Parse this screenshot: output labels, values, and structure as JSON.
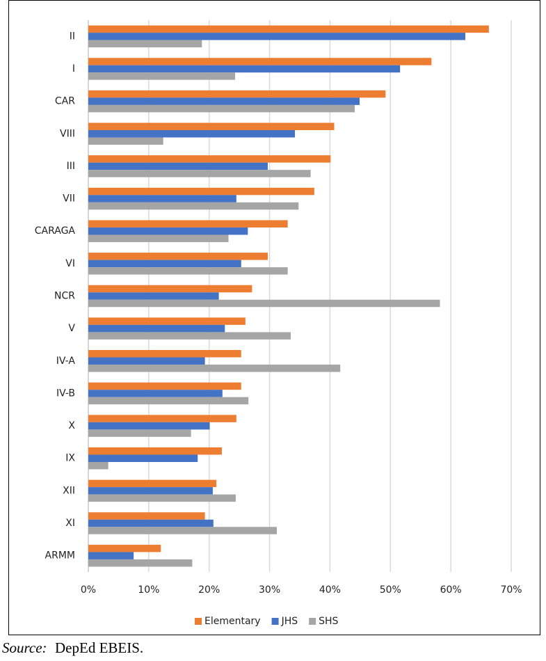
{
  "chart_data": {
    "type": "bar",
    "orientation": "horizontal",
    "categories": [
      "II",
      "I",
      "CAR",
      "VIII",
      "III",
      "VII",
      "CARAGA",
      "VI",
      "NCR",
      "V",
      "IV-A",
      "IV-B",
      "X",
      "IX",
      "XII",
      "XI",
      "ARMM"
    ],
    "series": [
      {
        "name": "Elementary",
        "color": "#ed7d31",
        "values": [
          66.3,
          56.8,
          49.2,
          40.7,
          40.1,
          37.4,
          33.0,
          29.7,
          27.1,
          26.0,
          25.3,
          25.3,
          24.5,
          22.1,
          21.2,
          19.3,
          12.0
        ]
      },
      {
        "name": "JHS",
        "color": "#4472c4",
        "values": [
          62.4,
          51.6,
          44.9,
          34.2,
          29.7,
          24.5,
          26.4,
          25.3,
          21.6,
          22.6,
          19.3,
          22.2,
          20.1,
          18.1,
          20.6,
          20.7,
          7.5
        ]
      },
      {
        "name": "SHS",
        "color": "#a5a5a5",
        "values": [
          18.8,
          24.3,
          44.1,
          12.4,
          36.8,
          34.8,
          23.2,
          33.0,
          58.2,
          33.5,
          41.7,
          26.5,
          17.0,
          3.3,
          24.4,
          31.2,
          17.2
        ]
      }
    ],
    "xlim": [
      0,
      70
    ],
    "xticks": [
      {
        "value": 0,
        "label": "0%"
      },
      {
        "value": 10,
        "label": "10%"
      },
      {
        "value": 20,
        "label": "20%"
      },
      {
        "value": 30,
        "label": "30%"
      },
      {
        "value": 40,
        "label": "40%"
      },
      {
        "value": 50,
        "label": "50%"
      },
      {
        "value": 60,
        "label": "60%"
      },
      {
        "value": 70,
        "label": "70%"
      }
    ],
    "grid": true,
    "legend": "bottom",
    "source_label": "Source:",
    "source": "DepEd EBEIS."
  }
}
